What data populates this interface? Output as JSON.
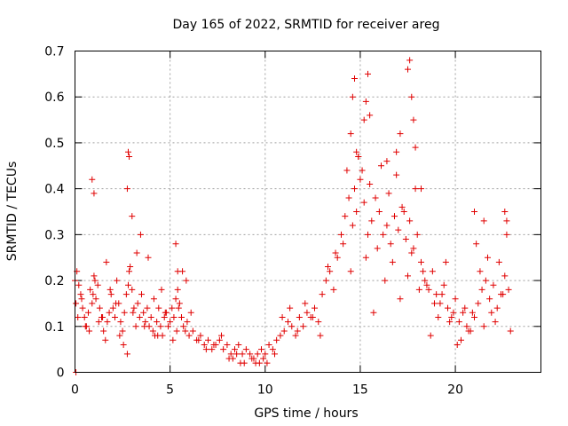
{
  "chart_data": {
    "type": "scatter",
    "title": "Day 165 of 2022, SRMTID for receiver areg",
    "xlabel": "GPS time / hours",
    "ylabel": "SRMTID / TECUs",
    "xlim": [
      0,
      24.5
    ],
    "ylim": [
      0,
      0.7
    ],
    "xticks": [
      0,
      5,
      10,
      15,
      20
    ],
    "yticks": [
      0,
      0.1,
      0.2,
      0.3,
      0.4,
      0.5,
      0.6,
      0.7
    ],
    "xtick_labels": [
      "0",
      "5",
      "10",
      "15",
      "20"
    ],
    "ytick_labels": [
      "0",
      "0.1",
      "0.2",
      "0.3",
      "0.4",
      "0.5",
      "0.6",
      "0.7"
    ],
    "grid": true,
    "marker": "+",
    "color": "#e00000",
    "series": [
      {
        "name": "SRMTID",
        "x": [
          0.0,
          0.1,
          0.2,
          0.3,
          0.4,
          0.5,
          0.6,
          0.7,
          0.8,
          0.9,
          1.0,
          1.1,
          1.2,
          1.3,
          1.4,
          1.5,
          1.6,
          1.7,
          1.8,
          1.9,
          2.0,
          2.1,
          2.2,
          2.3,
          2.4,
          2.5,
          2.6,
          2.7,
          2.8,
          2.9,
          3.0,
          3.1,
          3.2,
          3.3,
          3.4,
          3.5,
          3.6,
          3.7,
          3.8,
          3.9,
          4.0,
          4.1,
          4.2,
          4.3,
          4.4,
          4.5,
          4.6,
          4.7,
          4.8,
          4.9,
          5.0,
          5.1,
          5.2,
          5.3,
          5.4,
          5.5,
          5.6,
          5.7,
          5.8,
          5.9,
          6.0,
          6.2,
          6.4,
          6.6,
          6.8,
          7.0,
          7.2,
          7.4,
          7.6,
          7.8,
          8.0,
          8.2,
          8.4,
          8.6,
          8.8,
          9.0,
          9.2,
          9.4,
          9.6,
          9.8,
          10.0,
          10.2,
          10.4,
          10.6,
          10.8,
          11.0,
          11.2,
          11.4,
          11.6,
          11.8,
          12.0,
          12.2,
          12.4,
          12.6,
          12.8,
          13.0,
          13.2,
          13.4,
          13.6,
          13.8,
          14.0,
          14.2,
          14.4,
          14.6,
          14.8,
          15.0,
          15.2,
          15.4,
          15.6,
          15.8,
          16.0,
          16.2,
          16.4,
          16.6,
          16.8,
          17.0,
          17.2,
          17.4,
          17.6,
          17.8,
          18.0,
          18.2,
          18.4,
          18.6,
          18.8,
          19.0,
          19.2,
          19.4,
          19.6,
          19.8,
          20.0,
          20.2,
          20.4,
          20.6,
          20.8,
          21.0,
          21.2,
          21.4,
          21.6,
          21.8,
          22.0,
          22.2,
          22.4,
          22.6,
          22.8,
          0.05,
          0.15,
          0.35,
          0.55,
          0.75,
          0.95,
          1.05,
          1.25,
          1.45,
          1.65,
          1.85,
          2.15,
          2.35,
          2.55,
          2.75,
          2.85,
          3.05,
          3.25,
          3.45,
          3.65,
          3.85,
          4.15,
          4.35,
          4.55,
          4.75,
          5.15,
          5.35,
          5.45,
          5.65,
          5.85,
          6.1,
          6.5,
          6.9,
          7.3,
          7.7,
          8.1,
          8.5,
          8.9,
          9.3,
          9.7,
          10.1,
          10.5,
          10.9,
          11.3,
          11.7,
          12.1,
          12.5,
          12.9,
          13.3,
          13.7,
          14.1,
          14.3,
          14.5,
          14.7,
          14.9,
          15.1,
          15.3,
          15.5,
          15.7,
          15.9,
          16.1,
          16.3,
          16.5,
          16.7,
          16.9,
          17.1,
          17.3,
          17.5,
          17.7,
          17.9,
          18.1,
          18.3,
          18.5,
          18.7,
          18.9,
          19.1,
          19.3,
          19.5,
          19.7,
          19.9,
          20.1,
          20.3,
          20.5,
          20.7,
          20.9,
          21.1,
          21.3,
          21.5,
          21.7,
          21.9,
          22.1,
          22.3,
          22.5,
          22.7,
          22.9,
          0.9,
          1.0,
          2.8,
          2.85,
          2.75,
          3.0,
          5.3,
          5.4,
          14.5,
          14.6,
          14.7,
          15.3,
          15.4,
          15.5,
          17.5,
          17.6,
          17.7,
          17.8,
          17.9,
          14.8,
          15.2,
          16.9,
          17.1,
          16.4,
          21.0,
          21.5,
          22.6,
          22.7,
          18.2,
          14.9,
          0.05,
          9.5,
          9.9,
          8.7,
          8.3
        ],
        "y": [
          0.2,
          0.22,
          0.19,
          0.17,
          0.14,
          0.12,
          0.1,
          0.13,
          0.18,
          0.15,
          0.21,
          0.16,
          0.19,
          0.14,
          0.12,
          0.09,
          0.07,
          0.11,
          0.13,
          0.17,
          0.14,
          0.12,
          0.2,
          0.15,
          0.11,
          0.09,
          0.13,
          0.17,
          0.19,
          0.23,
          0.18,
          0.14,
          0.1,
          0.15,
          0.12,
          0.17,
          0.13,
          0.11,
          0.14,
          0.1,
          0.12,
          0.09,
          0.08,
          0.11,
          0.14,
          0.1,
          0.08,
          0.12,
          0.13,
          0.1,
          0.11,
          0.14,
          0.12,
          0.16,
          0.18,
          0.15,
          0.12,
          0.1,
          0.09,
          0.11,
          0.08,
          0.09,
          0.07,
          0.08,
          0.06,
          0.07,
          0.05,
          0.06,
          0.07,
          0.05,
          0.06,
          0.04,
          0.05,
          0.06,
          0.04,
          0.05,
          0.04,
          0.03,
          0.04,
          0.05,
          0.04,
          0.06,
          0.05,
          0.07,
          0.08,
          0.09,
          0.11,
          0.1,
          0.08,
          0.12,
          0.1,
          0.13,
          0.12,
          0.14,
          0.11,
          0.17,
          0.2,
          0.22,
          0.18,
          0.25,
          0.3,
          0.34,
          0.38,
          0.32,
          0.35,
          0.42,
          0.37,
          0.3,
          0.33,
          0.38,
          0.35,
          0.3,
          0.32,
          0.28,
          0.34,
          0.31,
          0.36,
          0.29,
          0.33,
          0.27,
          0.3,
          0.24,
          0.2,
          0.18,
          0.22,
          0.17,
          0.15,
          0.19,
          0.14,
          0.12,
          0.16,
          0.11,
          0.13,
          0.1,
          0.09,
          0.12,
          0.15,
          0.18,
          0.2,
          0.16,
          0.19,
          0.14,
          0.17,
          0.21,
          0.18,
          0.15,
          0.12,
          0.16,
          0.1,
          0.09,
          0.17,
          0.2,
          0.11,
          0.12,
          0.24,
          0.18,
          0.15,
          0.08,
          0.06,
          0.04,
          0.22,
          0.13,
          0.26,
          0.3,
          0.1,
          0.25,
          0.16,
          0.08,
          0.18,
          0.13,
          0.07,
          0.09,
          0.14,
          0.22,
          0.2,
          0.13,
          0.07,
          0.05,
          0.06,
          0.08,
          0.03,
          0.04,
          0.02,
          0.03,
          0.02,
          0.02,
          0.04,
          0.12,
          0.14,
          0.09,
          0.15,
          0.12,
          0.08,
          0.23,
          0.26,
          0.28,
          0.44,
          0.22,
          0.4,
          0.47,
          0.44,
          0.25,
          0.41,
          0.13,
          0.27,
          0.45,
          0.2,
          0.39,
          0.24,
          0.43,
          0.16,
          0.35,
          0.21,
          0.26,
          0.4,
          0.18,
          0.22,
          0.19,
          0.08,
          0.15,
          0.12,
          0.17,
          0.24,
          0.11,
          0.13,
          0.06,
          0.07,
          0.14,
          0.09,
          0.13,
          0.28,
          0.22,
          0.1,
          0.25,
          0.13,
          0.11,
          0.24,
          0.17,
          0.33,
          0.09,
          0.42,
          0.39,
          0.48,
          0.47,
          0.4,
          0.34,
          0.28,
          0.22,
          0.52,
          0.6,
          0.64,
          0.59,
          0.65,
          0.56,
          0.66,
          0.68,
          0.6,
          0.55,
          0.49,
          0.48,
          0.55,
          0.48,
          0.52,
          0.46,
          0.35,
          0.33,
          0.35,
          0.3,
          0.4,
          0.47,
          0.0,
          0.02,
          0.03,
          0.02,
          0.03
        ]
      }
    ]
  }
}
